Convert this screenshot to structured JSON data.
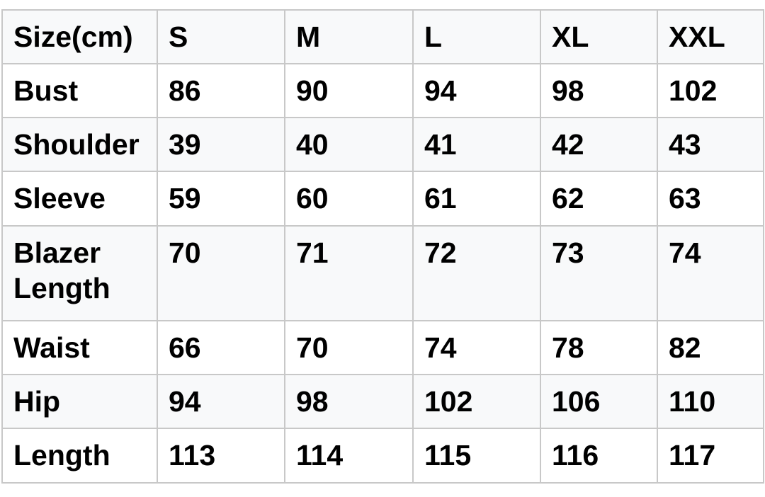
{
  "table": {
    "header": [
      "Size(cm)",
      "S",
      "M",
      "L",
      "XL",
      "XXL"
    ],
    "rows": [
      [
        "Bust",
        "86",
        "90",
        "94",
        "98",
        "102"
      ],
      [
        "Shoulder",
        "39",
        "40",
        "41",
        "42",
        "43"
      ],
      [
        "Sleeve",
        "59",
        "60",
        "61",
        "62",
        "63"
      ],
      [
        "Blazer Length",
        "70",
        "71",
        "72",
        "73",
        "74"
      ],
      [
        "Waist",
        "66",
        "70",
        "74",
        "78",
        "82"
      ],
      [
        "Hip",
        "94",
        "98",
        "102",
        "106",
        "110"
      ],
      [
        "Length",
        "113",
        "114",
        "115",
        "116",
        "117"
      ]
    ]
  },
  "colors": {
    "header_bg": "#f8f9fa",
    "border": "#c8c8c8",
    "text": "#000000"
  }
}
